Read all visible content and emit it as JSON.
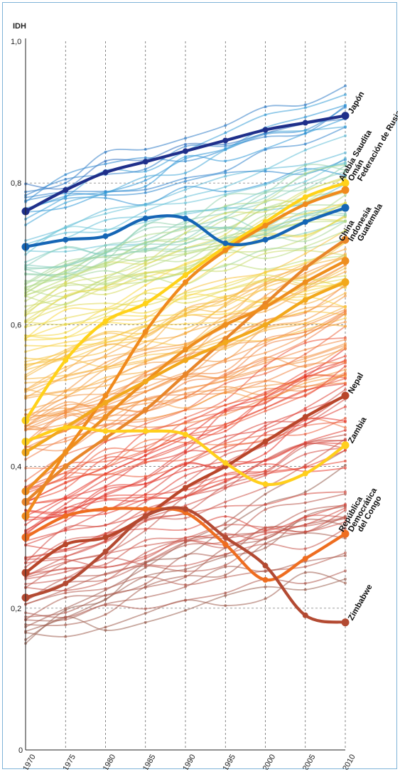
{
  "chart_data": {
    "type": "line",
    "ylabel": "IDH",
    "ylim": [
      0,
      1.0
    ],
    "y_ticks": [
      "0",
      "0,2",
      "0,4",
      "0,6",
      "0,8",
      "1,0"
    ],
    "x": [
      1970,
      1975,
      1980,
      1985,
      1990,
      1995,
      2000,
      2005,
      2010
    ],
    "x_ticks": [
      "1970",
      "1975",
      "1980",
      "1985",
      "1990",
      "1995",
      "2000",
      "2005",
      "2010"
    ],
    "grid": "dashed vertical and horizontal",
    "highlighted_series": [
      {
        "name": "Japón",
        "color": "#1f2f8a",
        "values": [
          0.76,
          0.79,
          0.815,
          0.83,
          0.845,
          0.86,
          0.875,
          0.885,
          0.895
        ]
      },
      {
        "name": "Arabia Saudita",
        "color": "#ffd21a",
        "values": [
          0.465,
          0.55,
          0.605,
          0.63,
          0.67,
          0.71,
          0.745,
          0.78,
          0.8
        ]
      },
      {
        "name": "Omán",
        "color": "#f08a1c",
        "values": [
          0.33,
          0.42,
          0.5,
          0.59,
          0.66,
          0.705,
          0.74,
          0.77,
          0.79
        ]
      },
      {
        "name": "Federación de Rusia",
        "color": "#1565b5",
        "values": [
          0.71,
          0.72,
          0.725,
          0.75,
          0.75,
          0.715,
          0.72,
          0.745,
          0.765
        ]
      },
      {
        "name": "China",
        "color": "#e8862a",
        "values": [
          0.35,
          0.4,
          0.44,
          0.48,
          0.53,
          0.58,
          0.63,
          0.68,
          0.72
        ]
      },
      {
        "name": "Indonesia",
        "color": "#ee8e1e",
        "values": [
          0.365,
          0.42,
          0.47,
          0.52,
          0.565,
          0.6,
          0.625,
          0.66,
          0.69
        ]
      },
      {
        "name": "Guatemala",
        "color": "#f2a81c",
        "values": [
          0.42,
          0.455,
          0.49,
          0.52,
          0.55,
          0.575,
          0.6,
          0.635,
          0.66
        ]
      },
      {
        "name": "Nepal",
        "color": "#b8462a",
        "values": [
          0.25,
          0.29,
          0.3,
          0.33,
          0.37,
          0.4,
          0.435,
          0.47,
          0.5
        ]
      },
      {
        "name": "Zambia",
        "color": "#ffcf1c",
        "values": [
          0.435,
          0.455,
          0.45,
          0.45,
          0.445,
          0.405,
          0.375,
          0.39,
          0.43
        ]
      },
      {
        "name": "República Democrática del Congo",
        "color": "#ee6d20",
        "values": [
          0.3,
          0.33,
          0.34,
          0.34,
          0.335,
          0.29,
          0.24,
          0.27,
          0.305
        ]
      },
      {
        "name": "Zimbabwe",
        "color": "#b34a32",
        "values": [
          0.215,
          0.235,
          0.28,
          0.33,
          0.34,
          0.3,
          0.26,
          0.19,
          0.18
        ]
      }
    ],
    "labels": [
      {
        "lines": [
          "Japón"
        ],
        "value": 0.895
      },
      {
        "lines": [
          "Arabia Saudita",
          "Omán",
          "Federación de Rusia"
        ],
        "value": 0.8
      },
      {
        "lines": [
          "China",
          "Indonesia",
          "Guatemala"
        ],
        "value": 0.715
      },
      {
        "lines": [
          "Nepal"
        ],
        "value": 0.5
      },
      {
        "lines": [
          "Zambia"
        ],
        "value": 0.43
      },
      {
        "lines": [
          "República",
          "Democrática",
          "del Congo"
        ],
        "value": 0.305
      },
      {
        "lines": [
          "Zimbabwe"
        ],
        "value": 0.18
      }
    ]
  }
}
